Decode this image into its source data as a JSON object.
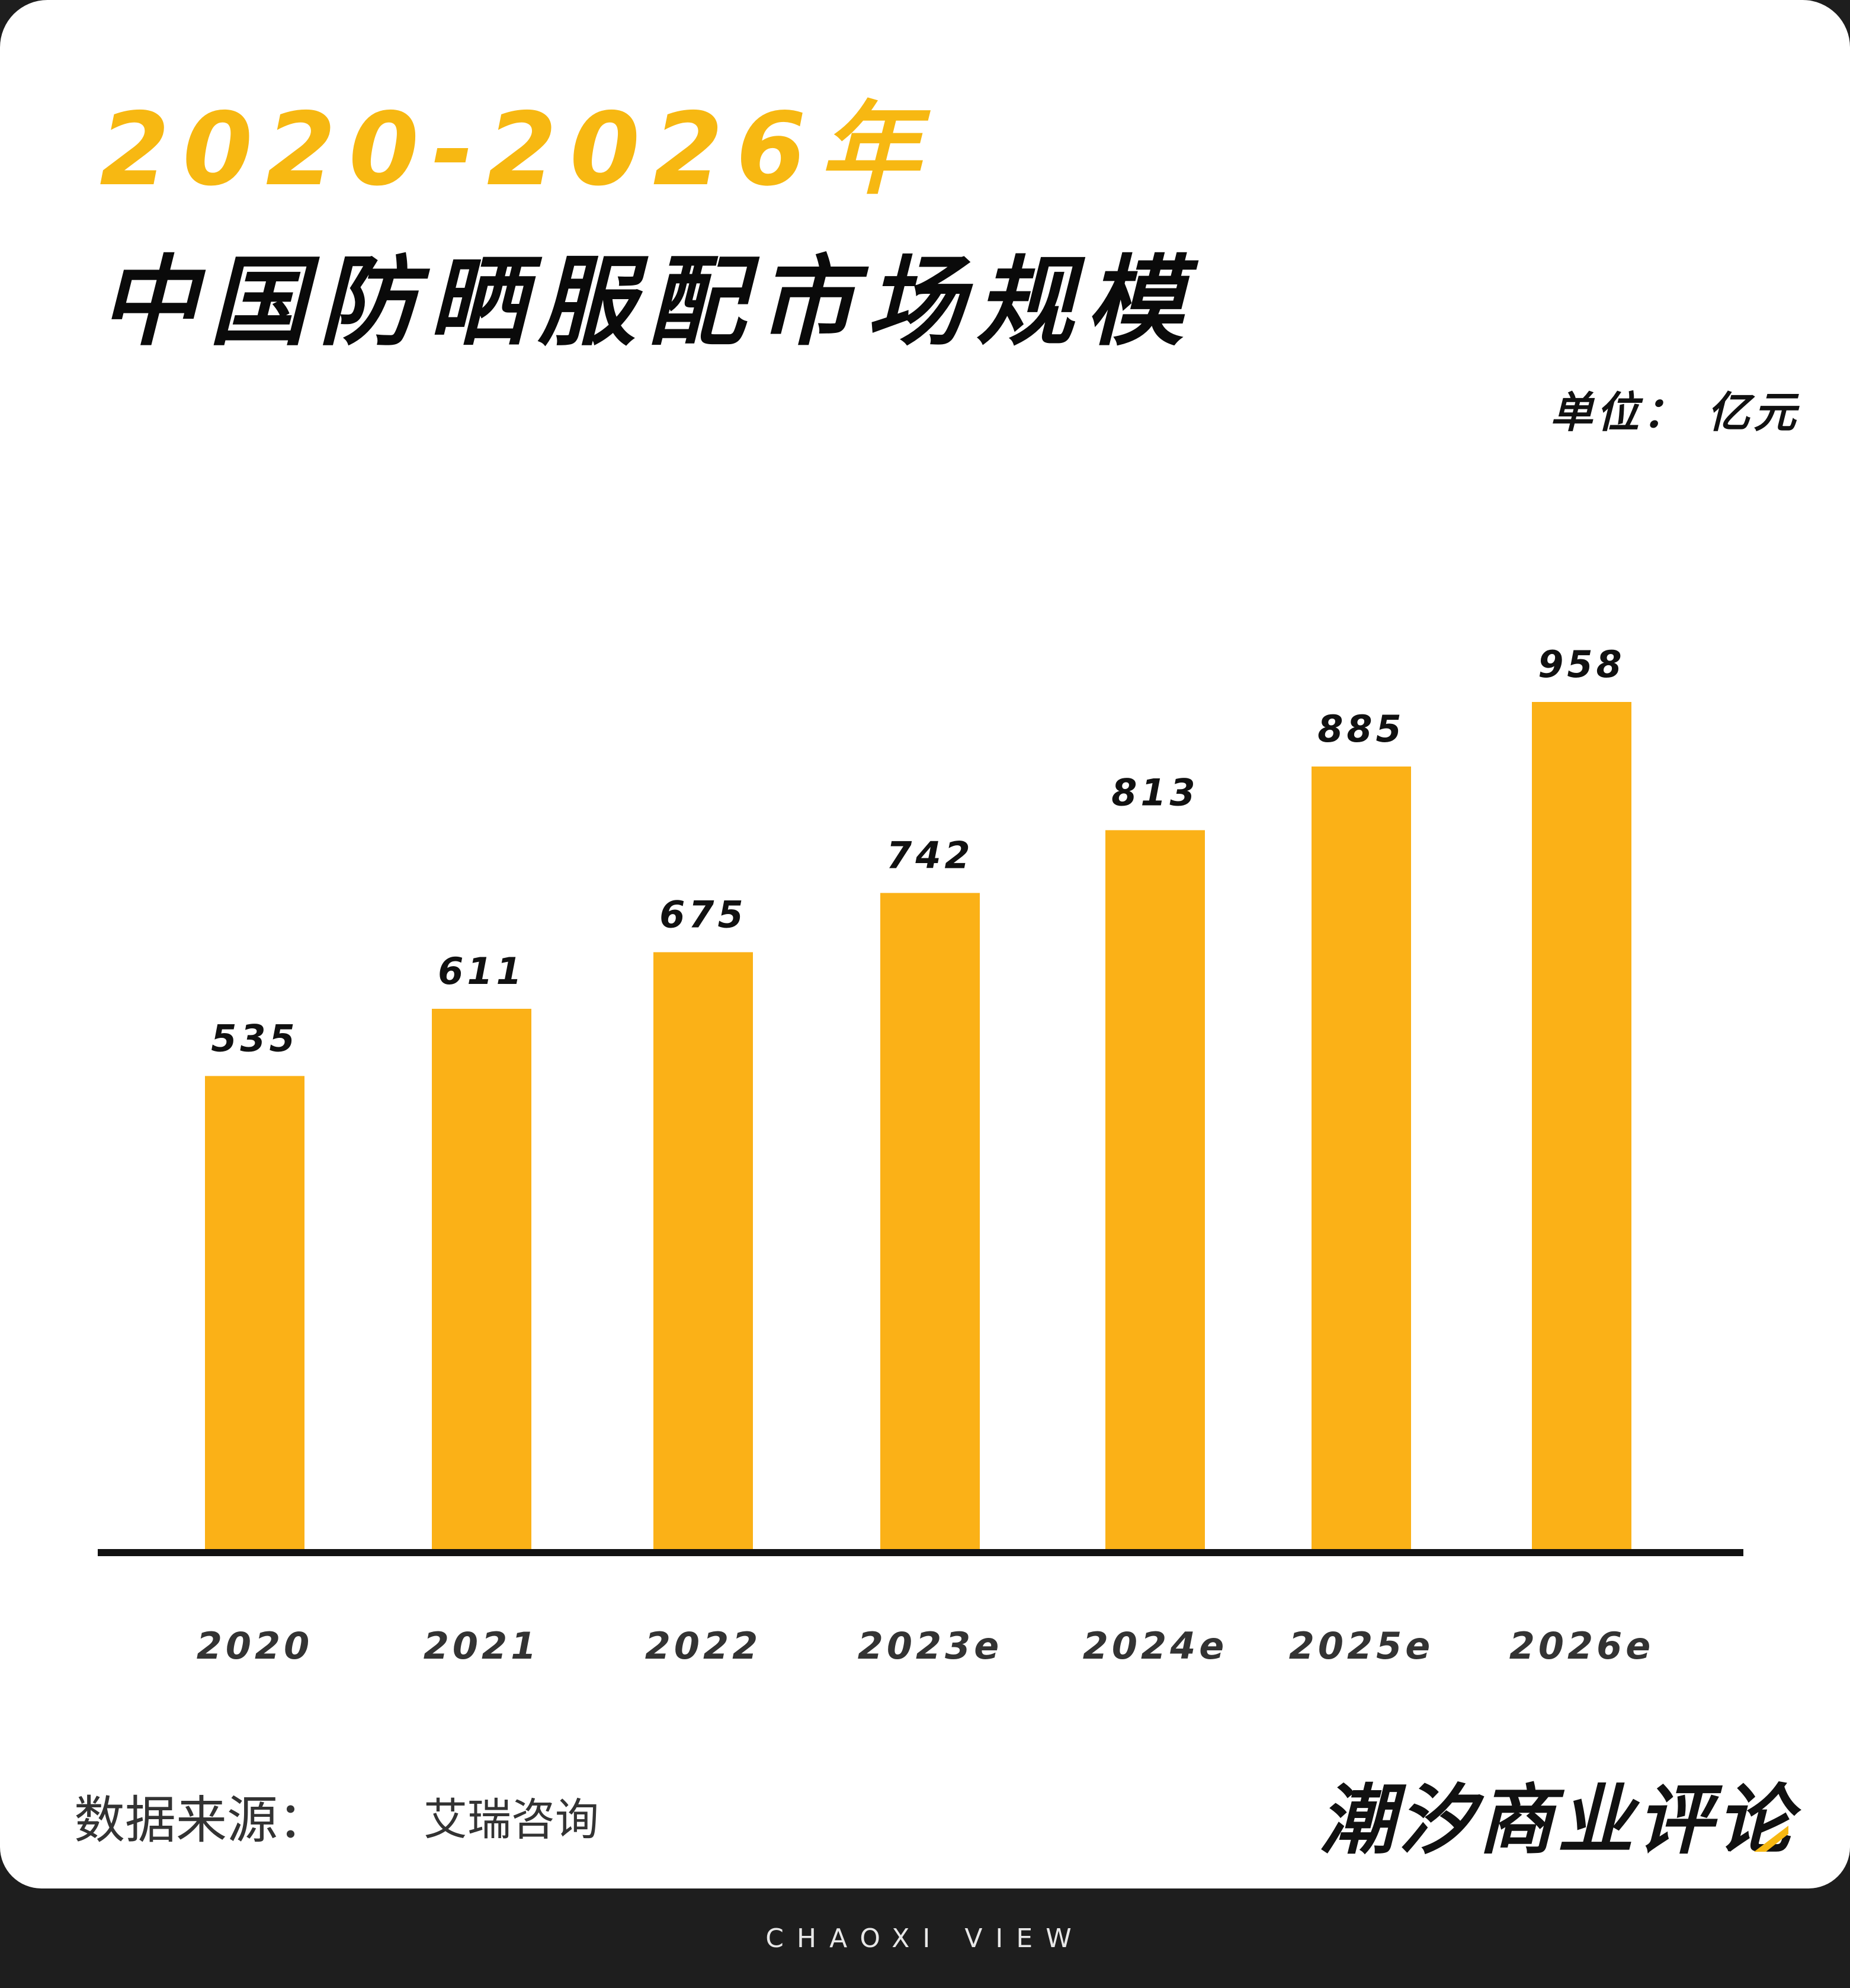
{
  "header": {
    "title_year": "2020-2026年",
    "title_main": "中国防晒服配市场规模",
    "unit": "单位： 亿元"
  },
  "colors": {
    "bar": "#fbb117",
    "axis": "#111111",
    "title_accent": "#f7b812"
  },
  "chart_data": {
    "type": "bar",
    "title": "2020-2026年 中国防晒服配市场规模",
    "ylabel": "",
    "unit": "单位： 亿元",
    "categories": [
      "2020",
      "2021",
      "2022",
      "2023e",
      "2024e",
      "2025e",
      "2026e"
    ],
    "values": [
      535,
      611,
      675,
      742,
      813,
      885,
      958
    ],
    "ylim": [
      0,
      1050
    ],
    "grid": false,
    "legend": "none"
  },
  "footer_info": {
    "source_label": "数据来源：",
    "source_value": "艾瑞咨询",
    "brand": "潮汐商业评论",
    "tagline": "CHAOXI VIEW"
  }
}
